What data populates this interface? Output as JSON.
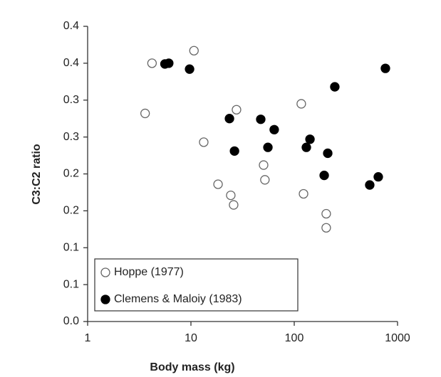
{
  "chart_data": {
    "type": "scatter",
    "xlabel": "Body mass (kg)",
    "ylabel": "C3:C2 ratio",
    "xscale": "log",
    "xlim": [
      1,
      1000
    ],
    "xticks": [
      1,
      10,
      100,
      1000
    ],
    "ylim": [
      0,
      0.4
    ],
    "yticks": [
      {
        "value": 0,
        "label": "0.0"
      },
      {
        "value": 0.05,
        "label": "0.1"
      },
      {
        "value": 0.1,
        "label": "0.1"
      },
      {
        "value": 0.15,
        "label": "0.2"
      },
      {
        "value": 0.2,
        "label": "0.2"
      },
      {
        "value": 0.25,
        "label": "0.3"
      },
      {
        "value": 0.3,
        "label": "0.3"
      },
      {
        "value": 0.35,
        "label": "0.4"
      },
      {
        "value": 0.4,
        "label": "0.4"
      }
    ],
    "legend": "lower left",
    "series": [
      {
        "name": "Hoppe (1977)",
        "color": "#ffffff",
        "edgecolor": "#666666",
        "x": [
          4.2,
          10.7,
          3.6,
          27.6,
          117,
          13.3,
          18.3,
          50.5,
          52,
          24.3,
          25.9,
          123,
          204,
          204
        ],
        "values": [
          0.35,
          0.367,
          0.282,
          0.287,
          0.295,
          0.243,
          0.186,
          0.212,
          0.192,
          0.171,
          0.158,
          0.173,
          0.146,
          0.127
        ]
      },
      {
        "name": "Clemens & Maloiy (1983)",
        "color": "#000000",
        "edgecolor": "#000000",
        "x": [
          5.6,
          6.1,
          9.7,
          763,
          247,
          23.6,
          47.4,
          64,
          26.4,
          55.6,
          142,
          131,
          211,
          195,
          651,
          538
        ],
        "values": [
          0.349,
          0.35,
          0.342,
          0.343,
          0.318,
          0.275,
          0.274,
          0.26,
          0.231,
          0.236,
          0.247,
          0.236,
          0.228,
          0.198,
          0.196,
          0.185
        ]
      }
    ]
  }
}
